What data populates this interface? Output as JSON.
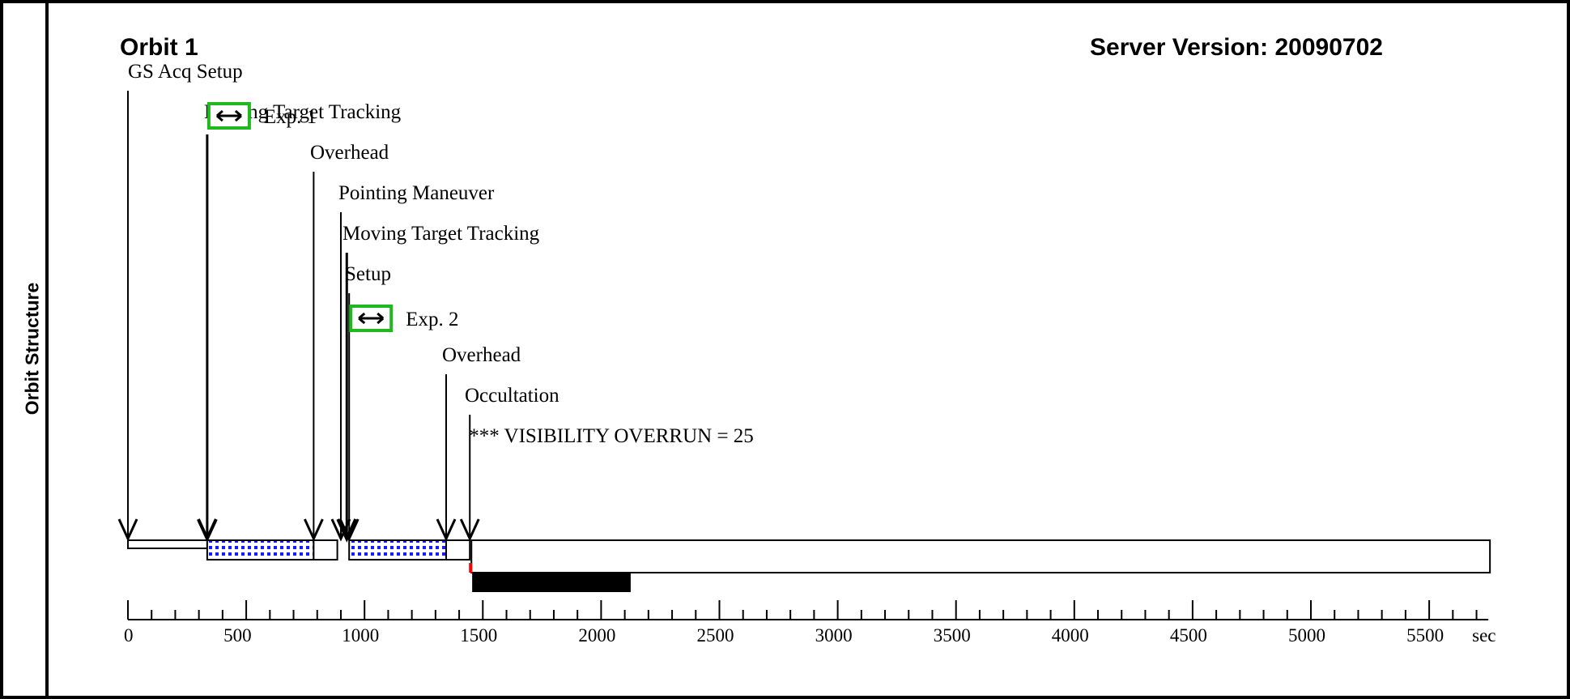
{
  "sidebar_label": "Orbit Structure",
  "orbit_title": "Orbit 1",
  "server_version": "Server Version: 20090702",
  "colors": {
    "exposure_box": "#1fb81f",
    "dot_fill": "#1a1aff",
    "overrun_marker": "#ff0000"
  },
  "chart_data": {
    "type": "timeline",
    "xlabel": "sec",
    "xlim": [
      0,
      5750
    ],
    "major_ticks": [
      0,
      500,
      1000,
      1500,
      2000,
      2500,
      3000,
      3500,
      4000,
      4500,
      5000,
      5500
    ],
    "minor_step": 100,
    "tick_labels": [
      "0",
      "500",
      "1000",
      "1500",
      "2000",
      "2500",
      "3000",
      "3500",
      "4000",
      "4500",
      "5000",
      "5500"
    ],
    "events": [
      {
        "label": "GS Acq Setup",
        "time": 0
      },
      {
        "label": "Moving Target Tracking",
        "time": 335
      },
      {
        "label": "Overhead",
        "time": 785
      },
      {
        "label": "Pointing Maneuver",
        "time": 900
      },
      {
        "label": "Moving Target Tracking",
        "time": 925
      },
      {
        "label": "Setup",
        "time": 935
      },
      {
        "label": "Overhead",
        "time": 1345
      },
      {
        "label": "Occultation",
        "time": 1445
      }
    ],
    "exposures": [
      {
        "label": "Exp. 1",
        "start": 335,
        "end": 785
      },
      {
        "label": "Exp. 2",
        "start": 935,
        "end": 1345
      }
    ],
    "segments": [
      {
        "start": 0,
        "end": 335,
        "kind": "setup"
      },
      {
        "start": 335,
        "end": 785,
        "kind": "exposure"
      },
      {
        "start": 785,
        "end": 885,
        "kind": "overhead"
      },
      {
        "start": 935,
        "end": 1345,
        "kind": "exposure"
      },
      {
        "start": 1345,
        "end": 1445,
        "kind": "overhead"
      },
      {
        "start": 1445,
        "end": 5750,
        "kind": "occultation"
      }
    ],
    "visibility_overrun": {
      "text": "*** VISIBILITY OVERRUN = 25",
      "time": 1445
    },
    "black_bar": {
      "start": 1455,
      "end": 2125
    }
  }
}
